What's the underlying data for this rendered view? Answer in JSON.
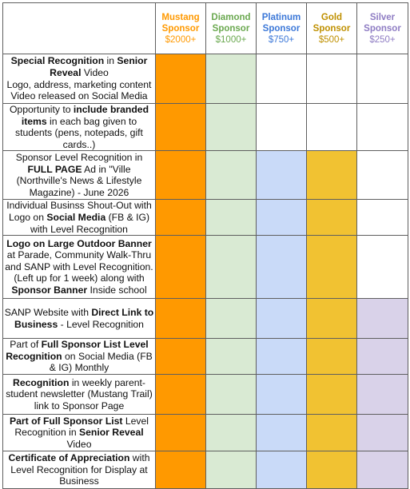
{
  "colors": {
    "mustang": "#ff9900",
    "diamond": "#d9ead3",
    "platinum": "#c9daf8",
    "gold": "#f1c232",
    "silver": "#d9d2e9",
    "mustang_text": "#ff9900",
    "diamond_text": "#6aa84f",
    "platinum_text": "#3c78d8",
    "gold_text": "#bf9000",
    "silver_text": "#8e7cc3"
  },
  "tiers": [
    {
      "id": "mustang",
      "name": "Mustang",
      "label": "Sponsor",
      "amount": "$2000+"
    },
    {
      "id": "diamond",
      "name": "Diamond",
      "label": "Sponsor",
      "amount": "$1000+"
    },
    {
      "id": "platinum",
      "name": "Platinum",
      "label": "Sponsor",
      "amount": "$750+"
    },
    {
      "id": "gold",
      "name": "Gold",
      "label": "Sponsor",
      "amount": "$500+"
    },
    {
      "id": "silver",
      "name": "Silver",
      "label": "Sponsor",
      "amount": "$250+"
    }
  ],
  "benefits": [
    {
      "segments": [
        {
          "t": "Special Recognition",
          "b": true
        },
        {
          "t": " in "
        },
        {
          "t": "Senior Reveal",
          "b": true
        },
        {
          "t": " Video\nLogo, address, marketing content\nVideo released on Social Media"
        }
      ],
      "included": [
        true,
        true,
        false,
        false,
        false
      ]
    },
    {
      "segments": [
        {
          "t": "Opportunity to "
        },
        {
          "t": "include branded items",
          "b": true
        },
        {
          "t": " in each bag given to students (pens, notepads, gift cards..)"
        }
      ],
      "included": [
        true,
        true,
        false,
        false,
        false
      ]
    },
    {
      "segments": [
        {
          "t": "Sponsor Level Recognition in "
        },
        {
          "t": "FULL PAGE",
          "b": true
        },
        {
          "t": " Ad in \"Ville (Northville's News & Lifestyle Magazine) - June 2026"
        }
      ],
      "included": [
        true,
        true,
        true,
        true,
        false
      ]
    },
    {
      "segments": [
        {
          "t": "Individual Businss Shout-Out with Logo on "
        },
        {
          "t": "Social Media",
          "b": true
        },
        {
          "t": " (FB & IG) with Level Recognition"
        }
      ],
      "included": [
        true,
        true,
        true,
        true,
        false
      ]
    },
    {
      "segments": [
        {
          "t": "Logo on Large Outdoor Banner",
          "b": true
        },
        {
          "t": " at Parade, Community Walk-Thru and SANP with Level Recognition. (Left up for 1 week) along with "
        },
        {
          "t": "Sponsor Banner",
          "b": true
        },
        {
          "t": " Inside school"
        }
      ],
      "included": [
        true,
        true,
        true,
        true,
        false
      ]
    },
    {
      "segments": [
        {
          "t": "SANP Website with "
        },
        {
          "t": "Direct Link to Business",
          "b": true
        },
        {
          "t": " - Level Recognition"
        }
      ],
      "included": [
        true,
        true,
        true,
        true,
        true
      ]
    },
    {
      "segments": [
        {
          "t": "Part of "
        },
        {
          "t": "Full Sponsor List Level Recognition",
          "b": true
        },
        {
          "t": " on Social Media (FB & IG) Monthly"
        }
      ],
      "included": [
        true,
        true,
        true,
        true,
        true
      ]
    },
    {
      "segments": [
        {
          "t": "Recognition",
          "b": true
        },
        {
          "t": " in weekly parent-student newsletter (Mustang Trail) link to Sponsor Page"
        }
      ],
      "included": [
        true,
        true,
        true,
        true,
        true
      ]
    },
    {
      "segments": [
        {
          "t": "Part of Full Sponsor List",
          "b": true
        },
        {
          "t": " Level Recognition in "
        },
        {
          "t": "Senior Reveal",
          "b": true
        },
        {
          "t": " Video"
        }
      ],
      "included": [
        true,
        true,
        true,
        true,
        true
      ]
    },
    {
      "segments": [
        {
          "t": "Certificate of Appreciation",
          "b": true
        },
        {
          "t": " with Level Recognition for Display at Business"
        }
      ],
      "included": [
        true,
        true,
        true,
        true,
        true
      ]
    }
  ]
}
